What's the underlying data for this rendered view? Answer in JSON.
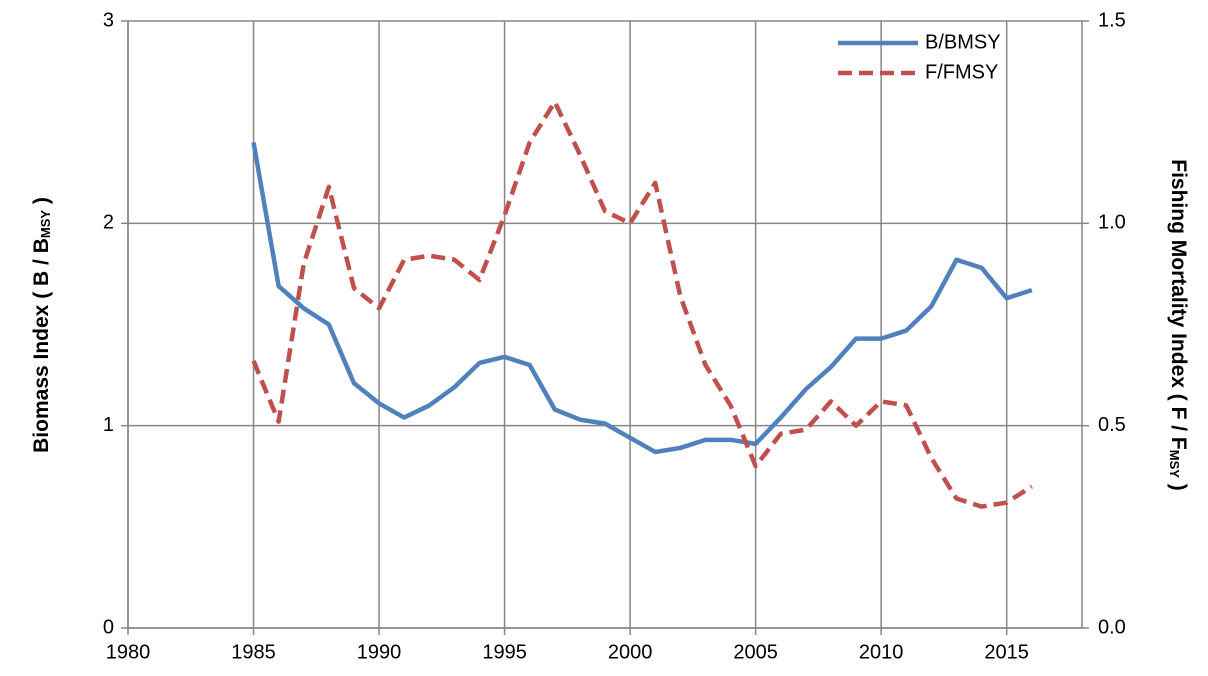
{
  "chart_data": {
    "type": "line",
    "x": [
      1985,
      1986,
      1987,
      1988,
      1989,
      1990,
      1991,
      1992,
      1993,
      1994,
      1995,
      1996,
      1997,
      1998,
      1999,
      2000,
      2001,
      2002,
      2003,
      2004,
      2005,
      2006,
      2007,
      2008,
      2009,
      2010,
      2011,
      2012,
      2013,
      2014,
      2015,
      2016
    ],
    "series": [
      {
        "name": "B/BMSY",
        "color": "#4f81bd",
        "dash": false,
        "values": [
          2.4,
          1.69,
          1.58,
          1.5,
          1.21,
          1.11,
          1.04,
          1.1,
          1.19,
          1.31,
          1.34,
          1.3,
          1.08,
          1.03,
          1.01,
          0.94,
          0.87,
          0.89,
          0.93,
          0.93,
          0.91,
          1.04,
          1.18,
          1.29,
          1.43,
          1.43,
          1.47,
          1.59,
          1.82,
          1.78,
          1.63,
          1.67
        ]
      },
      {
        "name": "F/FMSY",
        "color": "#c0504d",
        "dash": true,
        "axis": "y2",
        "values": [
          0.66,
          0.51,
          0.9,
          1.09,
          0.84,
          0.79,
          0.91,
          0.92,
          0.91,
          0.86,
          1.02,
          1.2,
          1.3,
          1.17,
          1.03,
          1.0,
          1.1,
          0.82,
          0.65,
          0.55,
          0.4,
          0.48,
          0.49,
          0.56,
          0.5,
          0.56,
          0.55,
          0.42,
          0.32,
          0.3,
          0.31,
          0.35
        ]
      }
    ],
    "xlim": [
      1980,
      2018
    ],
    "xticks": [
      1980,
      1985,
      1990,
      1995,
      2000,
      2005,
      2010,
      2015
    ],
    "ylim": [
      0,
      3
    ],
    "yticks": [
      0,
      1,
      2,
      3
    ],
    "y2lim": [
      0,
      1.5
    ],
    "y2ticks": [
      {
        "value": 0,
        "label": "0.0"
      },
      0.5,
      {
        "value": 1,
        "label": "1.0"
      },
      1.5
    ],
    "y_label": {
      "main": "Biomass Index ( B / B",
      "sub": "MSY",
      "end": " )"
    },
    "y2_label": {
      "main": "Fishing Mortality Index ( F / F",
      "sub": "MSY",
      "end": " )"
    },
    "grid": true,
    "legend": "top-right"
  }
}
